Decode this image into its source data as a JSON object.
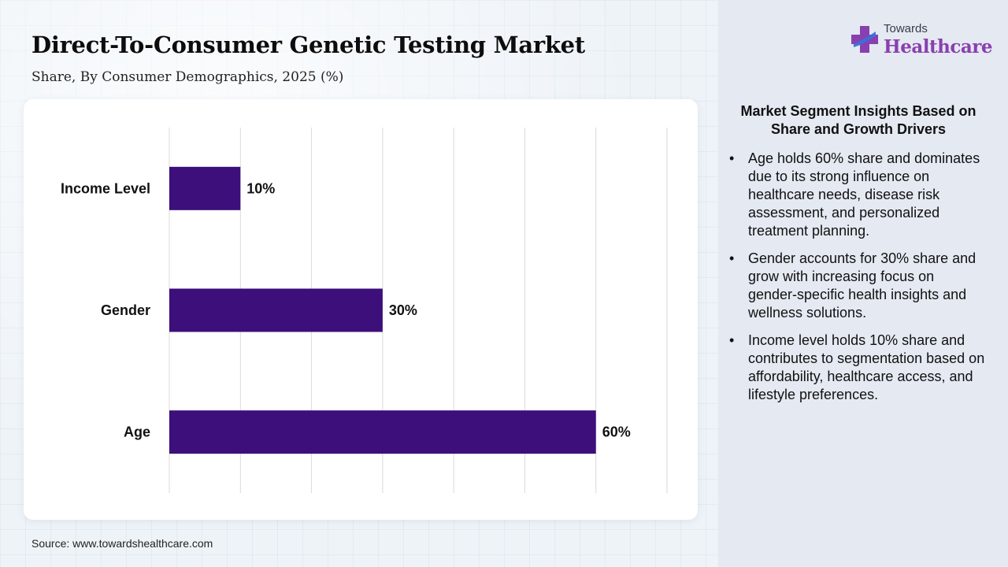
{
  "header": {
    "title": "Direct-To-Consumer Genetic Testing Market",
    "subtitle": "Share, By Consumer Demographics, 2025 (%)"
  },
  "logo": {
    "small_text": "Towards",
    "big_text": "Healthcare"
  },
  "chart_data": {
    "type": "bar",
    "orientation": "horizontal",
    "categories": [
      "Income Level",
      "Gender",
      "Age"
    ],
    "values": [
      10,
      30,
      60
    ],
    "value_labels": [
      "10%",
      "30%",
      "60%"
    ],
    "xlim": [
      0,
      70
    ],
    "grid": true,
    "bar_color": "#3d0f7a"
  },
  "insights": {
    "title": "Market Segment Insights Based on Share and Growth Drivers",
    "items": [
      "Age holds 60% share and dominates due to its strong influence on healthcare needs, disease risk assessment, and personalized treatment planning.",
      "Gender accounts for 30% share and grow with increasing focus on gender-specific health insights and wellness solutions.",
      "Income level holds 10% share and contributes to segmentation based on affordability, healthcare access, and lifestyle preferences."
    ]
  },
  "footer": {
    "source": "Source: www.towardshealthcare.com"
  },
  "colors": {
    "accent": "#3d0f7a",
    "brand": "#8a3fb0",
    "logo_blue": "#3b6fd8"
  }
}
